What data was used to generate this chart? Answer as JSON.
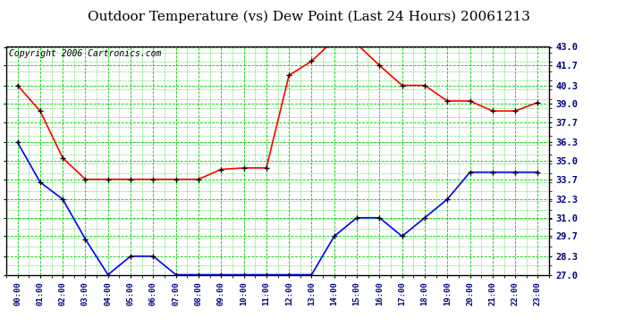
{
  "title": "Outdoor Temperature (vs) Dew Point (Last 24 Hours) 20061213",
  "copyright": "Copyright 2006 Cartronics.com",
  "hours": [
    "00:00",
    "01:00",
    "02:00",
    "03:00",
    "04:00",
    "05:00",
    "06:00",
    "07:00",
    "08:00",
    "09:00",
    "10:00",
    "11:00",
    "12:00",
    "13:00",
    "14:00",
    "15:00",
    "16:00",
    "17:00",
    "18:00",
    "19:00",
    "20:00",
    "21:00",
    "22:00",
    "23:00"
  ],
  "temp": [
    40.3,
    38.5,
    35.2,
    33.7,
    33.7,
    33.7,
    33.7,
    33.7,
    33.7,
    34.4,
    34.5,
    34.5,
    41.0,
    42.0,
    43.5,
    43.2,
    41.7,
    40.3,
    40.3,
    39.2,
    39.2,
    38.5,
    38.5,
    39.1
  ],
  "dewpoint": [
    36.3,
    33.5,
    32.3,
    29.5,
    27.0,
    28.3,
    28.3,
    27.0,
    27.0,
    27.0,
    27.0,
    27.0,
    27.0,
    27.0,
    29.7,
    31.0,
    31.0,
    29.7,
    31.0,
    32.3,
    34.2,
    34.2,
    34.2,
    34.2
  ],
  "temp_color": "#ff0000",
  "dewpoint_color": "#0000ff",
  "grid_color": "#00cc00",
  "bg_color": "#ffffff",
  "plot_bg_color": "#ffffff",
  "yticks": [
    27.0,
    28.3,
    29.7,
    31.0,
    32.3,
    33.7,
    35.0,
    36.3,
    37.7,
    39.0,
    40.3,
    41.7,
    43.0
  ],
  "ymin": 27.0,
  "ymax": 43.0,
  "title_fontsize": 11,
  "copyright_fontsize": 7,
  "marker": "+"
}
